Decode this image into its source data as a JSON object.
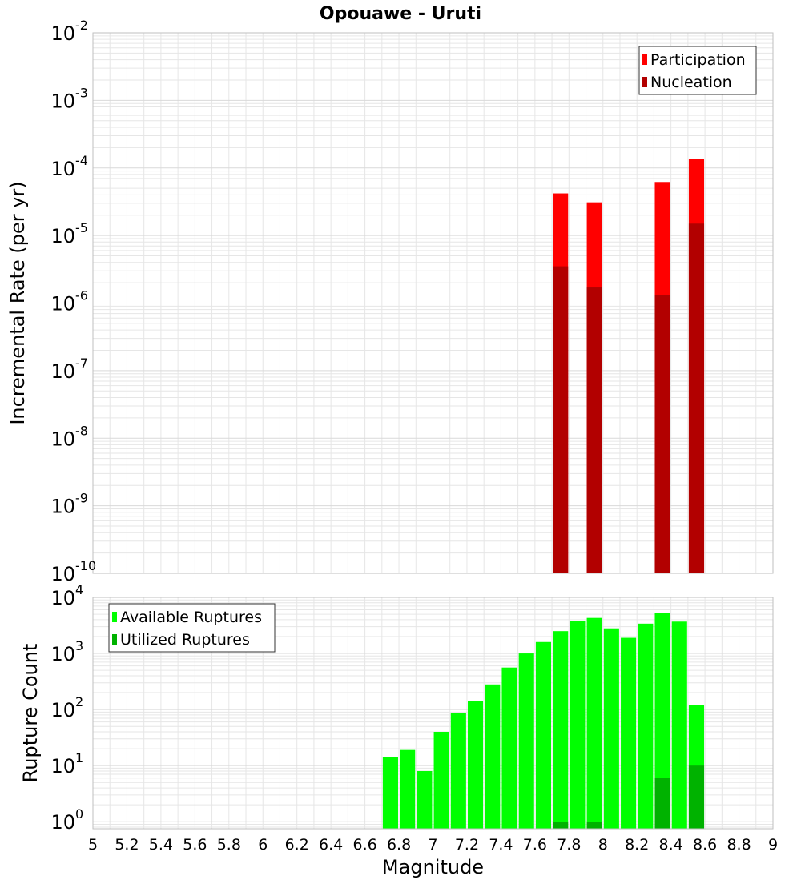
{
  "title": "Opouawe - Uruti",
  "colors": {
    "participation": "#ff0000",
    "nucleation": "#b20000",
    "available": "#00ff00",
    "utilized": "#00b200",
    "grid": "#e6e6e6",
    "frame": "#bfbfbf"
  },
  "chart_data": [
    {
      "type": "bar",
      "panel": "top",
      "ylabel": "Incremental Rate (per yr)",
      "xlabel": "",
      "y_scale": "log",
      "ylim": [
        1e-10,
        0.01
      ],
      "xlim": [
        5,
        9
      ],
      "y_ticks": [
        {
          "base": "10",
          "exp": "-10"
        },
        {
          "base": "10",
          "exp": "-9"
        },
        {
          "base": "10",
          "exp": "-8"
        },
        {
          "base": "10",
          "exp": "-7"
        },
        {
          "base": "10",
          "exp": "-6"
        },
        {
          "base": "10",
          "exp": "-5"
        },
        {
          "base": "10",
          "exp": "-4"
        },
        {
          "base": "10",
          "exp": "-3"
        },
        {
          "base": "10",
          "exp": "-2"
        }
      ],
      "grid": true,
      "legend": "top-right",
      "series": [
        {
          "name": "Participation",
          "color": "#ff0000",
          "x": [
            7.75,
            7.95,
            8.35,
            8.55
          ],
          "values": [
            4.2e-05,
            3.1e-05,
            6.2e-05,
            0.000135
          ]
        },
        {
          "name": "Nucleation",
          "color": "#b20000",
          "x": [
            7.75,
            7.95,
            8.35,
            8.55
          ],
          "values": [
            3.5e-06,
            1.7e-06,
            1.3e-06,
            1.5e-05
          ]
        }
      ]
    },
    {
      "type": "bar",
      "panel": "bottom",
      "ylabel": "Rupture Count",
      "xlabel": "Magnitude",
      "y_scale": "log",
      "ylim": [
        0.75,
        10000
      ],
      "xlim": [
        5,
        9
      ],
      "y_ticks": [
        {
          "base": "10",
          "exp": "0"
        },
        {
          "base": "10",
          "exp": "1"
        },
        {
          "base": "10",
          "exp": "2"
        },
        {
          "base": "10",
          "exp": "3"
        },
        {
          "base": "10",
          "exp": "4"
        }
      ],
      "x_ticks": [
        "5",
        "5.2",
        "5.4",
        "5.6",
        "5.8",
        "6",
        "6.2",
        "6.4",
        "6.6",
        "6.8",
        "7",
        "7.2",
        "7.4",
        "7.6",
        "7.8",
        "8",
        "8.2",
        "8.4",
        "8.6",
        "8.8",
        "9"
      ],
      "grid": true,
      "legend": "top-left",
      "series": [
        {
          "name": "Available Ruptures",
          "color": "#00ff00",
          "x": [
            6.75,
            6.85,
            6.95,
            7.05,
            7.15,
            7.25,
            7.35,
            7.45,
            7.55,
            7.65,
            7.75,
            7.85,
            7.95,
            8.05,
            8.15,
            8.25,
            8.35,
            8.45,
            8.55
          ],
          "values": [
            14,
            19,
            8,
            40,
            88,
            140,
            280,
            560,
            1000,
            1600,
            2500,
            3800,
            4300,
            2800,
            1900,
            3400,
            5300,
            3700,
            120
          ]
        },
        {
          "name": "Utilized Ruptures",
          "color": "#00b200",
          "x": [
            7.75,
            7.95,
            8.35,
            8.55
          ],
          "values": [
            1,
            1,
            6,
            10
          ]
        }
      ]
    }
  ]
}
